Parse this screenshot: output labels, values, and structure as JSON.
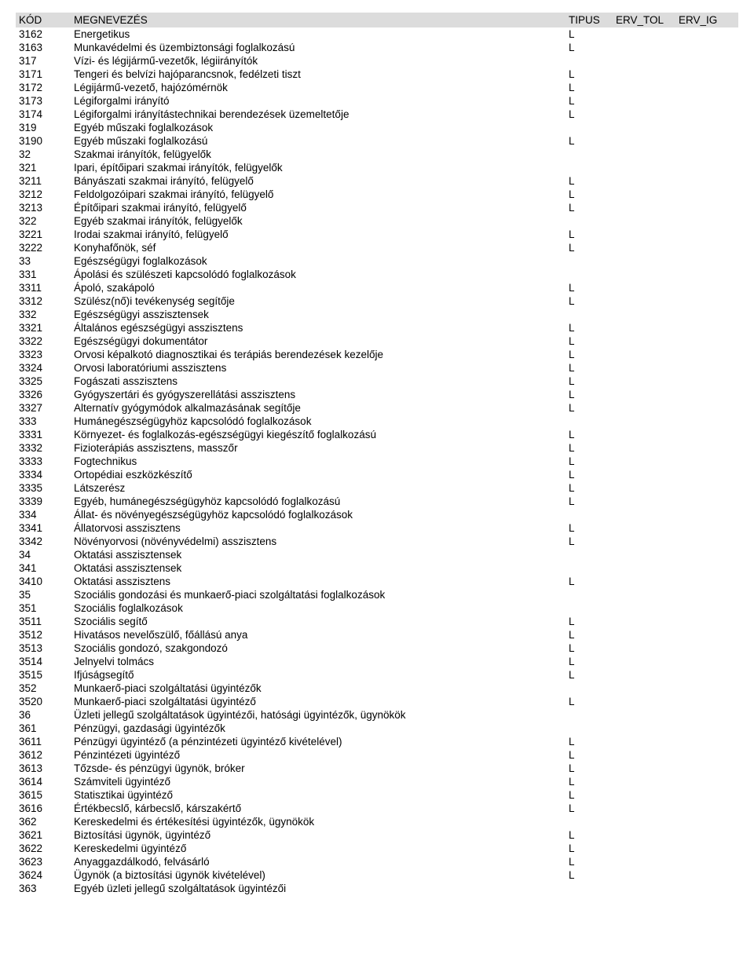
{
  "headers": {
    "kod": "KÓD",
    "megnevezes": "MEGNEVEZÉS",
    "tipus": "TIPUS",
    "erv_tol": "ERV_TOL",
    "erv_ig": "ERV_IG"
  },
  "rows": [
    {
      "kod": "3162",
      "name": "Energetikus",
      "tipus": "L"
    },
    {
      "kod": "3163",
      "name": "Munkavédelmi és üzembiztonsági foglalkozású",
      "tipus": "L"
    },
    {
      "kod": "317",
      "name": "Vízi- és légijármű-vezetők, légiirányítók",
      "tipus": ""
    },
    {
      "kod": "3171",
      "name": "Tengeri és belvízi hajóparancsnok, fedélzeti tiszt",
      "tipus": "L"
    },
    {
      "kod": "3172",
      "name": "Légijármű-vezető, hajózómérnök",
      "tipus": "L"
    },
    {
      "kod": "3173",
      "name": "Légiforgalmi irányító",
      "tipus": "L"
    },
    {
      "kod": "3174",
      "name": "Légiforgalmi irányítástechnikai berendezések üzemeltetője",
      "tipus": "L"
    },
    {
      "kod": "319",
      "name": "Egyéb műszaki foglalkozások",
      "tipus": ""
    },
    {
      "kod": "3190",
      "name": "Egyéb műszaki foglalkozású",
      "tipus": "L"
    },
    {
      "kod": "32",
      "name": "Szakmai irányítók, felügyelők",
      "tipus": ""
    },
    {
      "kod": "321",
      "name": "Ipari, építőipari szakmai irányítók, felügyelők",
      "tipus": ""
    },
    {
      "kod": "3211",
      "name": "Bányászati szakmai irányító, felügyelő",
      "tipus": "L"
    },
    {
      "kod": "3212",
      "name": "Feldolgozóipari szakmai irányító, felügyelő",
      "tipus": "L"
    },
    {
      "kod": "3213",
      "name": "Építőipari szakmai irányító, felügyelő",
      "tipus": "L"
    },
    {
      "kod": "322",
      "name": "Egyéb szakmai irányítók, felügyelők",
      "tipus": ""
    },
    {
      "kod": "3221",
      "name": "Irodai szakmai irányító, felügyelő",
      "tipus": "L"
    },
    {
      "kod": "3222",
      "name": "Konyhafőnök, séf",
      "tipus": "L"
    },
    {
      "kod": "33",
      "name": "Egészségügyi foglalkozások",
      "tipus": ""
    },
    {
      "kod": "331",
      "name": "Ápolási és szülészeti kapcsolódó foglalkozások",
      "tipus": ""
    },
    {
      "kod": "3311",
      "name": "Ápoló, szakápoló",
      "tipus": "L"
    },
    {
      "kod": "3312",
      "name": "Szülész(nő)i tevékenység segítője",
      "tipus": "L"
    },
    {
      "kod": "332",
      "name": "Egészségügyi asszisztensek",
      "tipus": ""
    },
    {
      "kod": "3321",
      "name": "Általános egészségügyi asszisztens",
      "tipus": "L"
    },
    {
      "kod": "3322",
      "name": "Egészségügyi dokumentátor",
      "tipus": "L"
    },
    {
      "kod": "3323",
      "name": "Orvosi képalkotó diagnosztikai és terápiás berendezések kezelője",
      "tipus": "L"
    },
    {
      "kod": "3324",
      "name": "Orvosi laboratóriumi asszisztens",
      "tipus": "L"
    },
    {
      "kod": "3325",
      "name": "Fogászati asszisztens",
      "tipus": "L"
    },
    {
      "kod": "3326",
      "name": "Gyógyszertári és gyógyszerellátási asszisztens",
      "tipus": "L"
    },
    {
      "kod": "3327",
      "name": "Alternatív gyógymódok alkalmazásának segítője",
      "tipus": "L"
    },
    {
      "kod": "333",
      "name": "Humánegészségügyhöz kapcsolódó foglalkozások",
      "tipus": ""
    },
    {
      "kod": "3331",
      "name": "Környezet- és foglalkozás-egészségügyi kiegészítő foglalkozású",
      "tipus": "L"
    },
    {
      "kod": "3332",
      "name": "Fizioterápiás asszisztens, masszőr",
      "tipus": "L"
    },
    {
      "kod": "3333",
      "name": "Fogtechnikus",
      "tipus": "L"
    },
    {
      "kod": "3334",
      "name": "Ortopédiai eszközkészítő",
      "tipus": "L"
    },
    {
      "kod": "3335",
      "name": "Látszerész",
      "tipus": "L"
    },
    {
      "kod": "3339",
      "name": "Egyéb, humánegészségügyhöz kapcsolódó foglalkozású",
      "tipus": "L"
    },
    {
      "kod": "334",
      "name": "Állat- és növényegészségügyhöz kapcsolódó foglalkozások",
      "tipus": ""
    },
    {
      "kod": "3341",
      "name": "Állatorvosi asszisztens",
      "tipus": "L"
    },
    {
      "kod": "3342",
      "name": "Növényorvosi (növényvédelmi) asszisztens",
      "tipus": "L"
    },
    {
      "kod": "34",
      "name": "Oktatási asszisztensek",
      "tipus": ""
    },
    {
      "kod": "341",
      "name": "Oktatási asszisztensek",
      "tipus": ""
    },
    {
      "kod": "3410",
      "name": "Oktatási asszisztens",
      "tipus": "L"
    },
    {
      "kod": "35",
      "name": "Szociális gondozási és munkaerő-piaci szolgáltatási foglalkozások",
      "tipus": ""
    },
    {
      "kod": "351",
      "name": "Szociális foglalkozások",
      "tipus": ""
    },
    {
      "kod": "3511",
      "name": "Szociális segítő",
      "tipus": "L"
    },
    {
      "kod": "3512",
      "name": "Hivatásos nevelőszülő, főállású anya",
      "tipus": "L"
    },
    {
      "kod": "3513",
      "name": "Szociális gondozó, szakgondozó",
      "tipus": "L"
    },
    {
      "kod": "3514",
      "name": "Jelnyelvi tolmács",
      "tipus": "L"
    },
    {
      "kod": "3515",
      "name": "Ifjúságsegítő",
      "tipus": "L"
    },
    {
      "kod": "352",
      "name": "Munkaerő-piaci szolgáltatási ügyintézők",
      "tipus": ""
    },
    {
      "kod": "3520",
      "name": "Munkaerő-piaci szolgáltatási ügyintéző",
      "tipus": "L"
    },
    {
      "kod": "36",
      "name": "Üzleti jellegű szolgáltatások ügyintézői, hatósági ügyintézők, ügynökök",
      "tipus": ""
    },
    {
      "kod": "361",
      "name": "Pénzügyi, gazdasági ügyintézők",
      "tipus": ""
    },
    {
      "kod": "3611",
      "name": "Pénzügyi ügyintéző (a pénzintézeti ügyintéző kivételével)",
      "tipus": "L"
    },
    {
      "kod": "3612",
      "name": "Pénzintézeti ügyintéző",
      "tipus": "L"
    },
    {
      "kod": "3613",
      "name": "Tőzsde- és pénzügyi ügynök, bróker",
      "tipus": "L"
    },
    {
      "kod": "3614",
      "name": "Számviteli ügyintéző",
      "tipus": "L"
    },
    {
      "kod": "3615",
      "name": "Statisztikai ügyintéző",
      "tipus": "L"
    },
    {
      "kod": "3616",
      "name": "Értékbecslő, kárbecslő, kárszakértő",
      "tipus": "L"
    },
    {
      "kod": "362",
      "name": "Kereskedelmi és értékesítési ügyintézők, ügynökök",
      "tipus": ""
    },
    {
      "kod": "3621",
      "name": "Biztosítási ügynök, ügyintéző",
      "tipus": "L"
    },
    {
      "kod": "3622",
      "name": "Kereskedelmi ügyintéző",
      "tipus": "L"
    },
    {
      "kod": "3623",
      "name": "Anyaggazdálkodó, felvásárló",
      "tipus": "L"
    },
    {
      "kod": "3624",
      "name": "Ügynök (a biztosítási ügynök kivételével)",
      "tipus": "L"
    },
    {
      "kod": "363",
      "name": "Egyéb üzleti jellegű szolgáltatások ügyintézői",
      "tipus": ""
    }
  ]
}
